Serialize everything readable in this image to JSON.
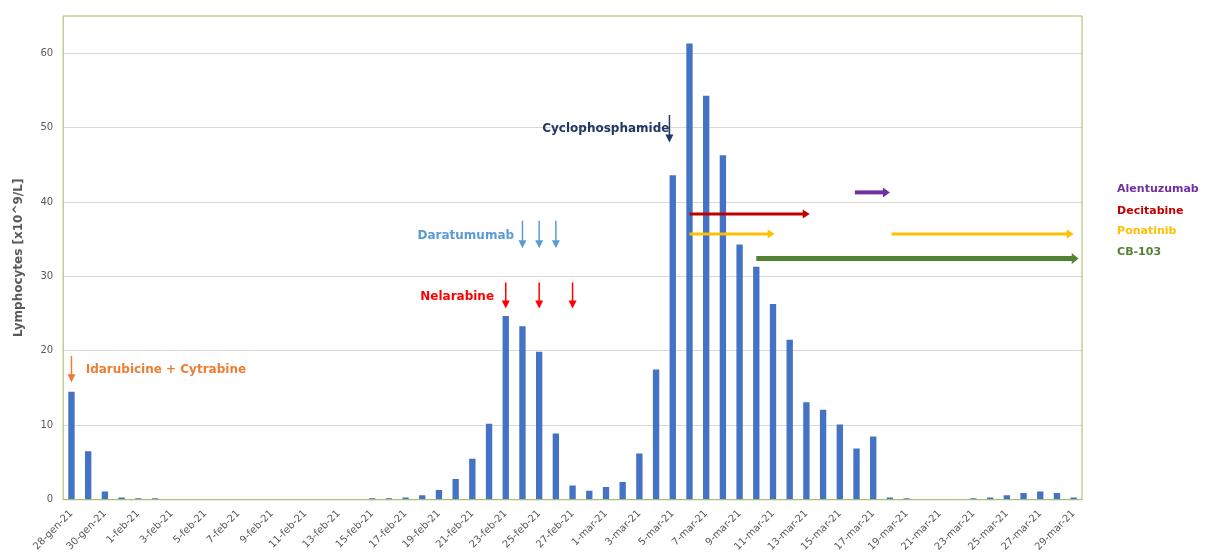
{
  "chart_data": {
    "type": "bar",
    "ylabel": "Lymphocytes [x10^9/L]",
    "categories": [
      "28-gen-21",
      null,
      "30-gen-21",
      null,
      "1-feb-21",
      null,
      "3-feb-21",
      null,
      "5-feb-21",
      null,
      "7-feb-21",
      null,
      "9-feb-21",
      null,
      "11-feb-21",
      null,
      "13-feb-21",
      null,
      "15-feb-21",
      null,
      "17-feb-21",
      null,
      "19-feb-21",
      null,
      "21-feb-21",
      null,
      "23-feb-21",
      null,
      "25-feb-21",
      null,
      "27-feb-21",
      null,
      "1-mar-21",
      null,
      "3-mar-21",
      null,
      "5-mar-21",
      null,
      "7-mar-21",
      null,
      "9-mar-21",
      null,
      "11-mar-21",
      null,
      "13-mar-21",
      null,
      "15-mar-21",
      null,
      "17-mar-21",
      null,
      "19-mar-21",
      null,
      "21-mar-21",
      null,
      "23-mar-21",
      null,
      "25-mar-21",
      null,
      "27-mar-21",
      null,
      "29-mar-21"
    ],
    "values": [
      14.5,
      6.5,
      1.1,
      0.3,
      0.2,
      0.2,
      null,
      null,
      null,
      null,
      null,
      null,
      null,
      null,
      null,
      null,
      null,
      null,
      0.2,
      0.2,
      0.3,
      0.6,
      1.3,
      2.8,
      5.5,
      10.2,
      24.7,
      23.3,
      19.9,
      8.9,
      1.9,
      1.2,
      1.7,
      2.4,
      6.2,
      17.5,
      43.6,
      61.3,
      54.3,
      46.3,
      34.3,
      31.3,
      26.3,
      21.5,
      13.1,
      12.1,
      10.1,
      6.9,
      8.5,
      0.3,
      0.2,
      null,
      null,
      null,
      0.2,
      0.3,
      0.6,
      0.9,
      1.1,
      0.9,
      0.3
    ],
    "color": "#4472c4",
    "ylim": [
      0,
      65
    ],
    "yticks": [
      0,
      10,
      20,
      30,
      40,
      50,
      60
    ],
    "grid": "y",
    "annotations": [
      "Idarubicine + Cytrabine",
      "Daratumumab",
      "Nelarabine",
      "Cyclophosphamide",
      "Alentuzumab",
      "Decitabine",
      "Ponatinib",
      "CB-103"
    ]
  }
}
